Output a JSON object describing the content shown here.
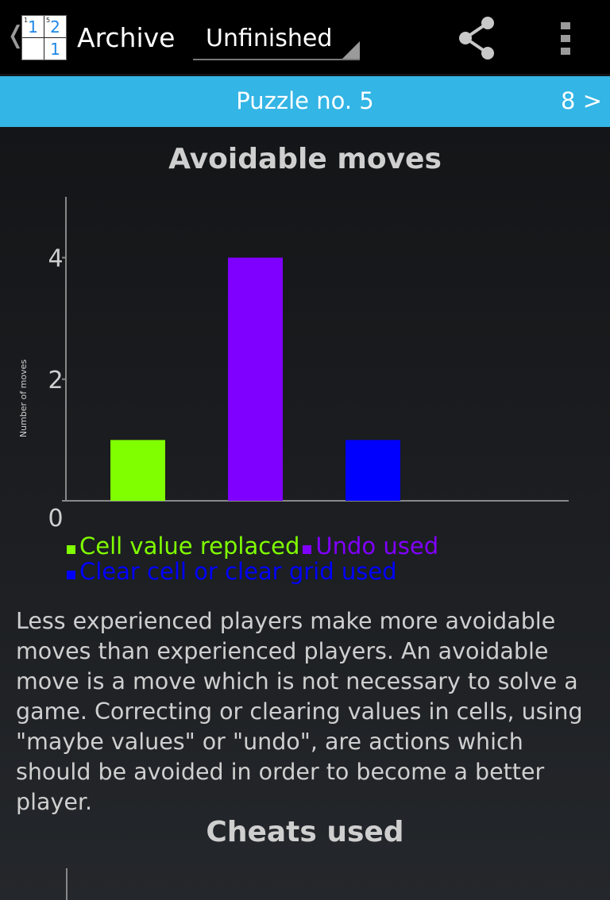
{
  "actionbar": {
    "title": "Archive",
    "spinner_value": "Unfinished",
    "logo_cells": [
      "1",
      "2",
      "",
      "1"
    ],
    "logo_cage_labels": [
      "1",
      "5"
    ]
  },
  "subbar": {
    "title": "Puzzle no. 5",
    "next_label": "8 >"
  },
  "sections": {
    "avoidable_title": "Avoidable moves",
    "explanation": "Less experienced players make more avoidable moves than experienced players. An avoidable move is a move which is not necessary to solve a game. Correcting or clearing values in cells, using \"maybe values\" or \"undo\", are actions which should be avoided in order to become a better player.",
    "cheats_title": "Cheats used"
  },
  "chart_data": {
    "type": "bar",
    "title": "Avoidable moves",
    "ylabel": "Number of moves",
    "xlabel": "",
    "categories": [
      "Cell value replaced",
      "Undo used",
      "Clear cell or clear grid used"
    ],
    "values": [
      1,
      4,
      1
    ],
    "colors": [
      "#80ff00",
      "#8000ff",
      "#0000ff"
    ],
    "ylim": [
      0,
      5
    ],
    "yticks": [
      0,
      2,
      4
    ],
    "legend_placement": "bottom",
    "grid": false
  },
  "colors": {
    "accent": "#33b5e5",
    "background": "#1b1d20",
    "text": "#cfcfcf"
  },
  "icons": {
    "share": "share-icon",
    "overflow": "overflow-menu-icon",
    "up": "chevron-left-icon"
  }
}
